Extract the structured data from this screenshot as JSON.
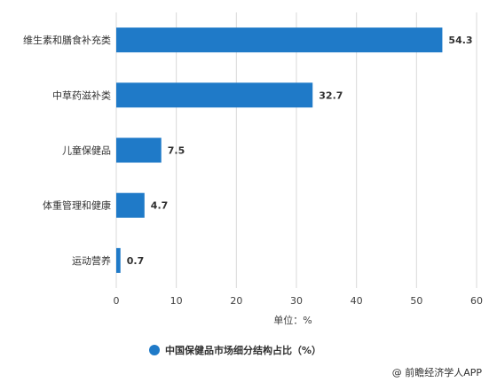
{
  "chart_data": {
    "type": "bar",
    "orientation": "horizontal",
    "categories": [
      "维生素和膳食补充类",
      "中草药滋补类",
      "儿童保健品",
      "体重管理和健康",
      "运动营养"
    ],
    "values": [
      54.3,
      32.7,
      7.5,
      4.7,
      0.7
    ],
    "data_labels": [
      "54.3",
      "32.7",
      "7.5",
      "4.7",
      "0.7"
    ],
    "xlim": [
      0,
      60
    ],
    "xticks": [
      0,
      10,
      20,
      30,
      40,
      50,
      60
    ],
    "xlabel": "单位：%",
    "grid": "vertical",
    "legend": {
      "placement": "bottom",
      "entries": [
        "中国保健品市场细分结构占比（%）"
      ]
    },
    "bar_color": "#1F7AC8",
    "grid_color": "#D9D9D9"
  },
  "source": "@ 前瞻经济学人APP"
}
